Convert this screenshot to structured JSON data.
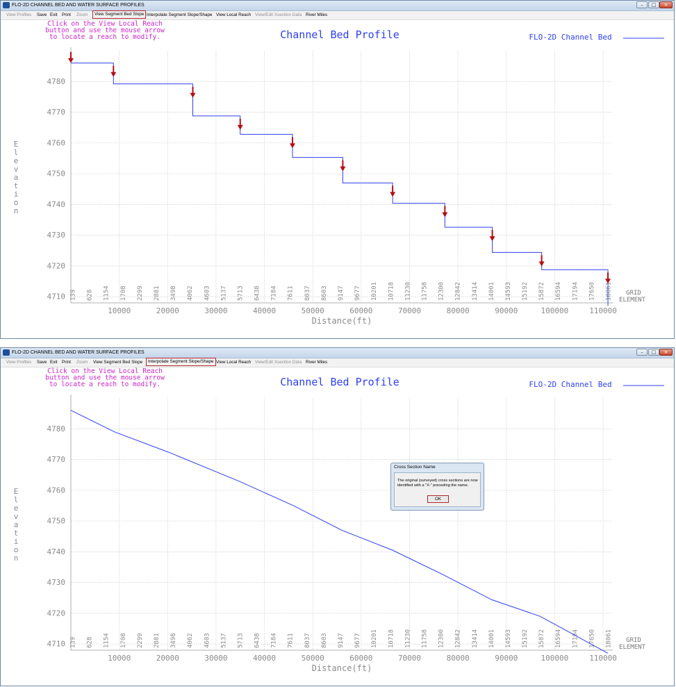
{
  "colors": {
    "series": "#2e3ff0",
    "arrow": "#b30d14",
    "note": "#cc22cc",
    "axis_text": "#8a8a8a",
    "grid": "#c9c9c9",
    "highlight": "#b1262c"
  },
  "window": {
    "title": "FLO-2D CHANNEL BED AND WATER SURFACE PROFILES"
  },
  "menu": [
    {
      "label": "View Profiles",
      "enabled": false
    },
    {
      "label": "Save",
      "enabled": true
    },
    {
      "label": "Exit",
      "enabled": true
    },
    {
      "label": "Print",
      "enabled": true
    },
    {
      "label": "Zoom",
      "enabled": false
    },
    {
      "label": "View Segment Bed Slope",
      "enabled": true
    },
    {
      "label": "Interpolate Segment Slope/Shape",
      "enabled": true
    },
    {
      "label": "View Local Reach",
      "enabled": true
    },
    {
      "label": "View/Edit Xsection Data",
      "enabled": false
    },
    {
      "label": "River Miles",
      "enabled": true
    }
  ],
  "panels": [
    {
      "highlighted_menu": "View Segment Bed Slope"
    },
    {
      "highlighted_menu": "Interpolate Segment Slope/Shape"
    }
  ],
  "note_lines": [
    "Click on the View Local Reach",
    "button and use the mouse arrow",
    "to locate a reach to modify."
  ],
  "grid_element_label": [
    "GRID",
    "ELEMENT"
  ],
  "dialog": {
    "title": "Cross Section Name",
    "text_lines": [
      "The original (surveyed) cross sections are now",
      "identified with a \"X-\" preceding the name."
    ],
    "ok_label": "OK"
  },
  "chart_data": [
    {
      "type": "line",
      "title": "Channel Bed Profile",
      "xlabel": "Distance(ft)",
      "ylabel": "Elevation",
      "legend": {
        "entries": [
          "FLO-2D Channel Bed"
        ],
        "placement": "top-right"
      },
      "xlim": [
        0,
        112000
      ],
      "ylim": [
        4708,
        4790
      ],
      "x_ticks": [
        10000,
        20000,
        30000,
        40000,
        50000,
        60000,
        70000,
        80000,
        90000,
        100000,
        110000
      ],
      "y_ticks": [
        4710,
        4720,
        4730,
        4740,
        4750,
        4760,
        4770,
        4780
      ],
      "grid": true,
      "grid_elements": [
        "139",
        "628",
        "1154",
        "1708",
        "2299",
        "2881",
        "3498",
        "4062",
        "4603",
        "5137",
        "5713",
        "6438",
        "7184",
        "7611",
        "8037",
        "8603",
        "9147",
        "9677",
        "10201",
        "10718",
        "11230",
        "11758",
        "12300",
        "12842",
        "13414",
        "14001",
        "14593",
        "15192",
        "15872",
        "16594",
        "17194",
        "17650",
        "18061"
      ],
      "series": [
        {
          "name": "FLO-2D Channel Bed",
          "x": [
            0,
            8800,
            8800,
            25200,
            25200,
            35000,
            35000,
            45800,
            45800,
            56200,
            56200,
            66500,
            66500,
            77300,
            77300,
            87100,
            87100,
            97300,
            97300,
            111000,
            111000
          ],
          "y": [
            4786,
            4786,
            4779.2,
            4779.2,
            4768.8,
            4768.8,
            4762.8,
            4762.8,
            4755.3,
            4755.3,
            4747,
            4747,
            4740.4,
            4740.4,
            4732.6,
            4732.6,
            4724.4,
            4724.4,
            4718.8,
            4718.8,
            4707
          ]
        }
      ],
      "arrows_x": [
        0,
        8800,
        25200,
        35000,
        45800,
        56200,
        66500,
        77300,
        87100,
        97300,
        111000
      ]
    },
    {
      "type": "line",
      "title": "Channel Bed Profile",
      "xlabel": "Distance(ft)",
      "ylabel": "Elevation",
      "legend": {
        "entries": [
          "FLO-2D Channel Bed"
        ],
        "placement": "top-right"
      },
      "xlim": [
        0,
        112000
      ],
      "ylim": [
        4708,
        4790
      ],
      "x_ticks": [
        10000,
        20000,
        30000,
        40000,
        50000,
        60000,
        70000,
        80000,
        90000,
        100000,
        110000
      ],
      "y_ticks": [
        4710,
        4720,
        4730,
        4740,
        4750,
        4760,
        4770,
        4780
      ],
      "grid": true,
      "grid_elements": [
        "139",
        "628",
        "1154",
        "1708",
        "2299",
        "2881",
        "3498",
        "4062",
        "4603",
        "5137",
        "5713",
        "6438",
        "7184",
        "7611",
        "8037",
        "8603",
        "9147",
        "9677",
        "10201",
        "10718",
        "11230",
        "11758",
        "12300",
        "12842",
        "13414",
        "14001",
        "14593",
        "15192",
        "15872",
        "16594",
        "17194",
        "17650",
        "18061"
      ],
      "series": [
        {
          "name": "FLO-2D Channel Bed",
          "x": [
            0,
            9000,
            20000,
            35000,
            46000,
            56000,
            66500,
            77000,
            87000,
            97000,
            111000
          ],
          "y": [
            4786,
            4779,
            4772.5,
            4762.8,
            4755,
            4747,
            4740.5,
            4732.5,
            4724.4,
            4719,
            4707
          ]
        }
      ]
    }
  ]
}
